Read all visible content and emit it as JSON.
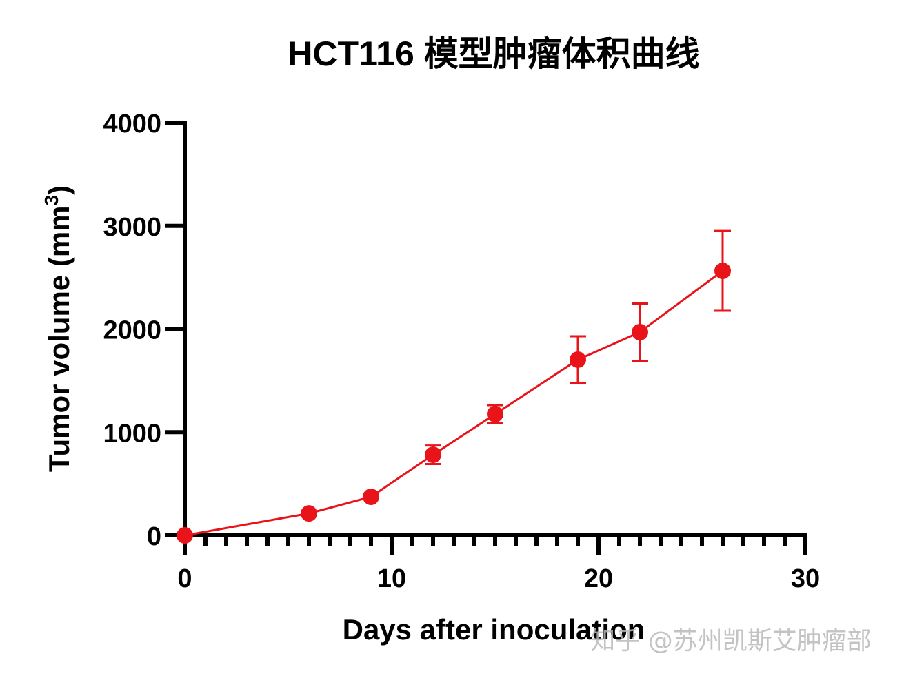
{
  "chart_data": {
    "type": "line",
    "title": "HCT116 模型肿瘤体积曲线",
    "xlabel": "Days after inoculation",
    "ylabel": "Tumor volume (mm3)",
    "ylabel_main": "Tumor volume (mm",
    "ylabel_sup": "3",
    "ylabel_close": ")",
    "xlim": [
      0,
      30
    ],
    "ylim": [
      0,
      4000
    ],
    "x_ticks": [
      0,
      10,
      20,
      30
    ],
    "x_tick_labels": [
      "0",
      "10",
      "20",
      "30"
    ],
    "x_minor_tick_step": 1,
    "y_ticks": [
      0,
      1000,
      2000,
      3000,
      4000
    ],
    "y_tick_labels": [
      "0",
      "1000",
      "2000",
      "3000",
      "4000"
    ],
    "grid": false,
    "legend": null,
    "series": [
      {
        "name": "HCT116",
        "color": "#e8141a",
        "marker": "circle",
        "x": [
          0,
          6,
          9,
          12,
          15,
          19,
          22,
          26
        ],
        "values": [
          0,
          213,
          374,
          781,
          1175,
          1703,
          1970,
          2564
        ],
        "error": [
          0,
          0,
          0,
          90,
          87,
          227,
          277,
          387
        ]
      }
    ]
  },
  "watermark": "知乎 @苏州凯斯艾肿瘤部"
}
